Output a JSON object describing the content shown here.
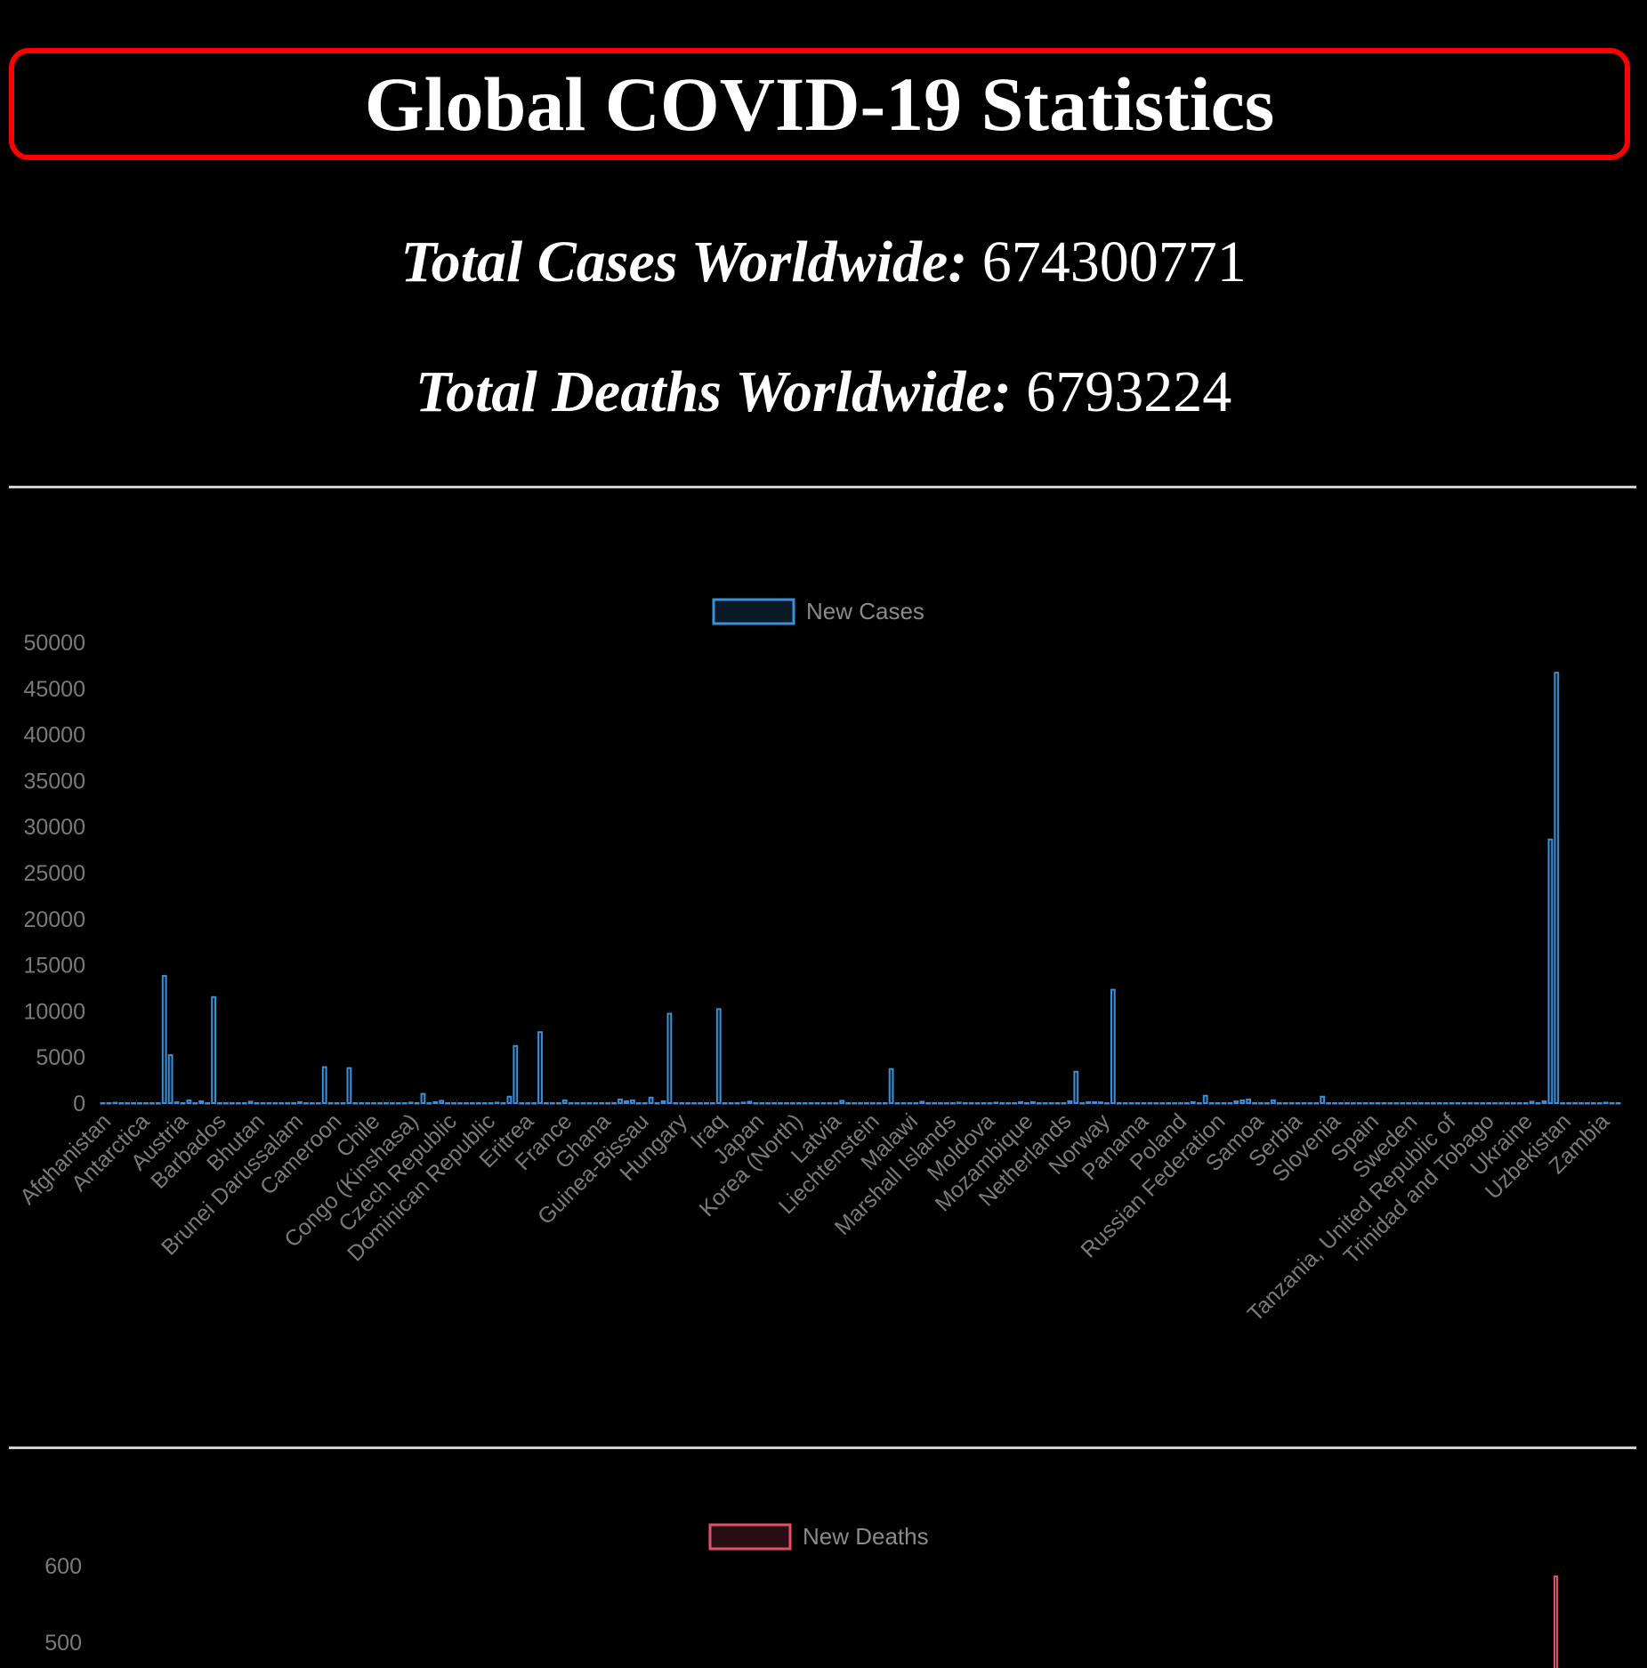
{
  "header": {
    "title": "Global COVID-19 Statistics"
  },
  "stats": {
    "cases_label": "Total Cases Worldwide:",
    "cases_value": "674300771",
    "deaths_label": "Total Deaths Worldwide:",
    "deaths_value": "6793224"
  },
  "colors": {
    "title_border": "#ff0000",
    "cases_bar": "#3a8fd6",
    "deaths_bar": "#e0506a"
  },
  "chart_data": [
    {
      "type": "bar",
      "legend": "New Cases",
      "legend_placement": "top-center",
      "ylim": [
        0,
        50000
      ],
      "yticks": [
        0,
        5000,
        10000,
        15000,
        20000,
        25000,
        30000,
        35000,
        40000,
        45000,
        50000
      ],
      "tick_labels": [
        "Afghanistan",
        "Antarctica",
        "Austria",
        "Barbados",
        "Bhutan",
        "Brunei Darussalam",
        "Cameroon",
        "Chile",
        "Congo (Kinshasa)",
        "Czech Republic",
        "Dominican Republic",
        "Eritrea",
        "France",
        "Ghana",
        "Guinea-Bissau",
        "Hungary",
        "Iraq",
        "Japan",
        "Korea (North)",
        "Latvia",
        "Liechtenstein",
        "Malawi",
        "Marshall Islands",
        "Moldova",
        "Mozambique",
        "Netherlands",
        "Norway",
        "Panama",
        "Poland",
        "Russian Federation",
        "Samoa",
        "Serbia",
        "Slovenia",
        "Spain",
        "Sweden",
        "Tanzania, United Republic of",
        "Trinidad and Tobago",
        "Ukraine",
        "Uzbekistan",
        "Zambia"
      ],
      "values": [
        0,
        0,
        30,
        0,
        0,
        0,
        0,
        0,
        0,
        0,
        13800,
        5200,
        80,
        0,
        300,
        0,
        200,
        0,
        11500,
        0,
        0,
        0,
        0,
        0,
        150,
        0,
        0,
        0,
        0,
        0,
        0,
        0,
        100,
        0,
        0,
        0,
        3900,
        0,
        0,
        0,
        3800,
        0,
        0,
        0,
        0,
        0,
        0,
        0,
        0,
        0,
        50,
        0,
        1000,
        0,
        100,
        250,
        0,
        0,
        0,
        0,
        0,
        0,
        0,
        0,
        50,
        0,
        700,
        6200,
        0,
        0,
        0,
        7700,
        0,
        0,
        0,
        300,
        0,
        0,
        0,
        0,
        0,
        0,
        0,
        0,
        400,
        200,
        300,
        0,
        0,
        600,
        0,
        200,
        9700,
        0,
        0,
        0,
        0,
        0,
        0,
        0,
        10200,
        0,
        0,
        0,
        50,
        150,
        0,
        0,
        0,
        0,
        0,
        0,
        0,
        0,
        0,
        0,
        0,
        0,
        0,
        0,
        250,
        0,
        0,
        0,
        0,
        0,
        0,
        0,
        3700,
        0,
        0,
        0,
        0,
        150,
        0,
        0,
        0,
        0,
        0,
        50,
        0,
        0,
        0,
        0,
        0,
        50,
        0,
        0,
        0,
        100,
        0,
        100,
        0,
        0,
        0,
        0,
        0,
        200,
        3400,
        0,
        100,
        100,
        80,
        0,
        12300,
        0,
        0,
        0,
        0,
        0,
        0,
        0,
        0,
        0,
        0,
        0,
        0,
        100,
        0,
        800,
        0,
        0,
        0,
        0,
        200,
        300,
        400,
        0,
        0,
        0,
        300,
        0,
        0,
        0,
        0,
        0,
        0,
        0,
        700,
        0,
        0,
        0,
        0,
        0,
        0,
        0,
        0,
        0,
        0,
        0,
        0,
        0,
        0,
        0,
        0,
        0,
        0,
        0,
        0,
        0,
        0,
        0,
        0,
        0,
        0,
        0,
        0,
        0,
        0,
        0,
        0,
        0,
        150,
        0,
        200,
        28600,
        46700,
        0,
        0,
        0,
        0,
        0,
        0,
        0,
        50,
        0,
        0
      ]
    },
    {
      "type": "bar",
      "legend": "New Deaths",
      "legend_placement": "top-center",
      "yticks_visible": [
        600,
        500
      ],
      "ylim": [
        0,
        600
      ]
    }
  ]
}
